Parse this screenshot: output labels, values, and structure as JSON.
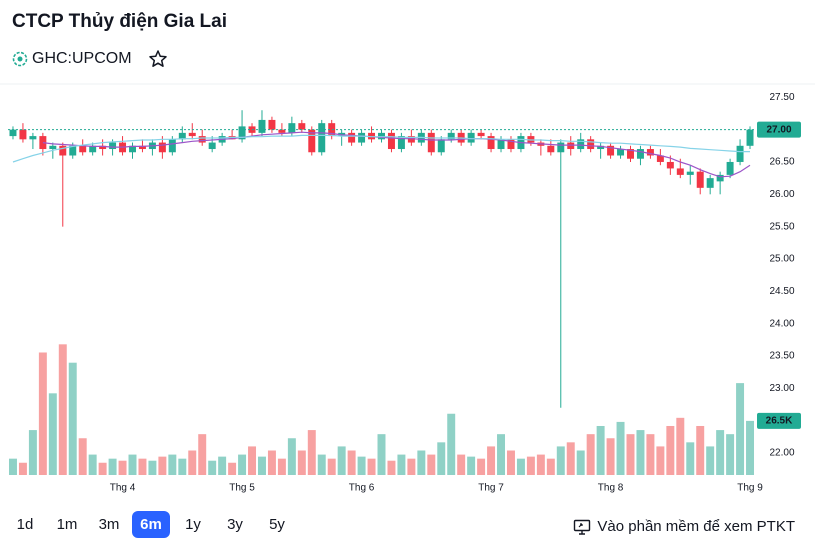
{
  "header": {
    "title": "CTCP Thủy điện Gia Lai",
    "symbol": "GHC:UPCOM"
  },
  "chart_data": {
    "type": "candlestick",
    "xticks": [
      {
        "value": 11,
        "label": "Thg 4"
      },
      {
        "value": 23,
        "label": "Thg 5"
      },
      {
        "value": 35,
        "label": "Thg 6"
      },
      {
        "value": 48,
        "label": "Thg 7"
      },
      {
        "value": 60,
        "label": "Thg 8"
      },
      {
        "value": 74,
        "label": "Thg 9"
      }
    ],
    "ylim": [
      21.66,
      27.69
    ],
    "yticks": [
      {
        "value": 22,
        "label": "22.00"
      },
      {
        "value": 22.5,
        "label": "22.50"
      },
      {
        "value": 23,
        "label": "23.00"
      },
      {
        "value": 23.5,
        "label": "23.50"
      },
      {
        "value": 24,
        "label": "24.00"
      },
      {
        "value": 24.5,
        "label": "24.50"
      },
      {
        "value": 25,
        "label": "25.00"
      },
      {
        "value": 25.5,
        "label": "25.50"
      },
      {
        "value": 26,
        "label": "26.00"
      },
      {
        "value": 26.5,
        "label": "26.50"
      },
      {
        "value": 27,
        "label": "27.00"
      },
      {
        "value": 27.5,
        "label": "27.50"
      }
    ],
    "price": {
      "up_color": "#22ab94",
      "down_color": "#f23645",
      "last_close_label": "27.00",
      "open": [
        26.9,
        27.0,
        26.85,
        26.9,
        26.7,
        26.75,
        26.6,
        26.75,
        26.65,
        26.75,
        26.7,
        26.8,
        26.65,
        26.75,
        26.7,
        26.8,
        26.65,
        26.85,
        26.95,
        26.9,
        26.7,
        26.8,
        26.9,
        26.85,
        27.05,
        26.95,
        27.15,
        27.0,
        26.95,
        27.1,
        27.0,
        26.65,
        27.1,
        26.9,
        26.95,
        26.8,
        26.95,
        26.85,
        26.95,
        26.7,
        26.9,
        26.8,
        26.95,
        26.65,
        26.85,
        26.95,
        26.8,
        26.95,
        26.9,
        26.7,
        26.85,
        26.7,
        26.9,
        26.8,
        26.75,
        26.65,
        26.8,
        26.7,
        26.85,
        26.7,
        26.75,
        26.6,
        26.7,
        26.55,
        26.7,
        26.6,
        26.5,
        26.4,
        26.3,
        26.35,
        26.1,
        26.2,
        26.3,
        26.5,
        26.75
      ],
      "high": [
        27.05,
        27.1,
        26.95,
        26.95,
        26.8,
        26.8,
        26.8,
        26.85,
        26.8,
        26.85,
        26.85,
        26.9,
        26.8,
        26.85,
        26.85,
        26.9,
        26.9,
        27.05,
        27.1,
        27.0,
        26.9,
        26.95,
        27.0,
        27.3,
        27.1,
        27.3,
        27.2,
        27.1,
        27.2,
        27.15,
        27.05,
        27.15,
        27.15,
        27.0,
        27.0,
        27.0,
        27.05,
        27.0,
        27.0,
        26.95,
        27.0,
        27.0,
        27.0,
        26.9,
        27.0,
        27.0,
        27.0,
        27.0,
        26.95,
        26.9,
        26.9,
        26.95,
        26.95,
        26.85,
        26.85,
        26.85,
        26.9,
        26.95,
        26.9,
        26.8,
        26.8,
        26.75,
        26.75,
        26.75,
        26.75,
        26.7,
        26.6,
        26.55,
        26.45,
        26.4,
        26.3,
        26.35,
        26.55,
        26.85,
        27.05
      ],
      "low": [
        26.85,
        26.8,
        26.7,
        26.6,
        26.55,
        25.5,
        26.55,
        26.6,
        26.6,
        26.6,
        26.6,
        26.6,
        26.55,
        26.65,
        26.6,
        26.55,
        26.6,
        26.8,
        26.85,
        26.75,
        26.65,
        26.75,
        26.85,
        26.8,
        26.9,
        26.9,
        26.95,
        26.9,
        26.9,
        26.95,
        26.6,
        26.6,
        26.85,
        26.75,
        26.75,
        26.75,
        26.8,
        26.8,
        26.65,
        26.65,
        26.75,
        26.75,
        26.6,
        26.6,
        26.8,
        26.75,
        26.75,
        26.85,
        26.65,
        26.65,
        26.65,
        26.65,
        26.75,
        26.6,
        26.6,
        22.7,
        26.6,
        26.65,
        26.65,
        26.55,
        26.55,
        26.55,
        26.5,
        26.45,
        26.55,
        26.45,
        26.3,
        26.25,
        26.15,
        26.0,
        26.0,
        26.0,
        26.25,
        26.45,
        26.7
      ],
      "close": [
        27.0,
        26.85,
        26.9,
        26.7,
        26.75,
        26.6,
        26.75,
        26.65,
        26.75,
        26.7,
        26.8,
        26.65,
        26.75,
        26.7,
        26.8,
        26.65,
        26.85,
        26.95,
        26.9,
        26.8,
        26.8,
        26.9,
        26.85,
        27.05,
        26.95,
        27.15,
        27.0,
        26.95,
        27.1,
        27.0,
        26.65,
        27.1,
        26.9,
        26.95,
        26.8,
        26.95,
        26.85,
        26.95,
        26.7,
        26.9,
        26.8,
        26.95,
        26.65,
        26.85,
        26.95,
        26.8,
        26.95,
        26.9,
        26.7,
        26.85,
        26.7,
        26.9,
        26.8,
        26.75,
        26.65,
        26.8,
        26.7,
        26.85,
        26.7,
        26.75,
        26.6,
        26.7,
        26.55,
        26.7,
        26.6,
        26.5,
        26.4,
        26.3,
        26.35,
        26.1,
        26.25,
        26.3,
        26.5,
        26.75,
        27.0
      ]
    },
    "moving_averages": [
      {
        "color": "#9c55c9",
        "values": [
          null,
          null,
          null,
          26.8,
          26.78,
          26.77,
          26.76,
          26.75,
          26.74,
          26.74,
          26.73,
          26.73,
          26.74,
          26.74,
          26.75,
          26.76,
          26.78,
          26.8,
          26.82,
          26.83,
          26.84,
          26.85,
          26.86,
          26.88,
          26.9,
          26.92,
          26.93,
          26.94,
          26.95,
          26.96,
          26.95,
          26.95,
          26.94,
          26.92,
          26.91,
          26.9,
          26.89,
          26.88,
          26.87,
          26.86,
          26.86,
          26.85,
          26.84,
          26.84,
          26.84,
          26.85,
          26.86,
          26.86,
          26.85,
          26.84,
          26.82,
          26.8,
          26.79,
          26.78,
          26.77,
          26.76,
          26.76,
          26.76,
          26.75,
          26.74,
          26.72,
          26.7,
          26.68,
          26.66,
          26.63,
          26.6,
          26.56,
          26.5,
          26.45,
          26.38,
          26.32,
          26.27,
          26.28,
          26.35,
          26.45
        ]
      },
      {
        "color": "#86d3e8",
        "values": [
          26.5,
          26.55,
          26.6,
          26.64,
          26.68,
          26.71,
          26.74,
          26.76,
          26.78,
          26.8,
          26.81,
          26.82,
          26.83,
          26.84,
          26.84,
          26.85,
          26.85,
          26.86,
          26.86,
          26.87,
          26.87,
          26.87,
          26.88,
          26.88,
          26.89,
          26.89,
          26.9,
          26.9,
          26.9,
          26.91,
          26.91,
          26.91,
          26.91,
          26.9,
          26.9,
          26.9,
          26.89,
          26.89,
          26.89,
          26.88,
          26.88,
          26.88,
          26.87,
          26.87,
          26.87,
          26.87,
          26.86,
          26.86,
          26.86,
          26.85,
          26.85,
          26.85,
          26.84,
          26.84,
          26.83,
          26.83,
          26.82,
          26.82,
          26.81,
          26.8,
          26.79,
          26.79,
          26.78,
          26.77,
          26.76,
          26.75,
          26.74,
          26.73,
          26.71,
          26.7,
          26.69,
          26.68,
          26.67,
          26.66,
          26.66
        ]
      }
    ],
    "volume": {
      "up_color": "#8fd1c6",
      "down_color": "#f7a1a1",
      "ylim": [
        0,
        191
      ],
      "last_volume_label": "26.5K",
      "values": [
        8,
        6,
        22,
        60,
        40,
        64,
        55,
        18,
        10,
        6,
        8,
        7,
        10,
        8,
        7,
        9,
        10,
        8,
        12,
        20,
        7,
        9,
        6,
        10,
        14,
        9,
        12,
        8,
        18,
        12,
        22,
        10,
        8,
        14,
        12,
        9,
        8,
        20,
        7,
        10,
        8,
        12,
        10,
        16,
        30,
        10,
        9,
        8,
        14,
        20,
        12,
        8,
        9,
        10,
        8,
        14,
        16,
        12,
        20,
        24,
        18,
        26,
        20,
        22,
        20,
        14,
        24,
        28,
        16,
        24,
        14,
        22,
        20,
        45,
        26.5
      ]
    }
  },
  "ranges": {
    "options": [
      "1d",
      "1m",
      "3m",
      "6m",
      "1y",
      "3y",
      "5y"
    ],
    "selected": 3
  },
  "link_text": "Vào phần mềm để xem PTKT"
}
